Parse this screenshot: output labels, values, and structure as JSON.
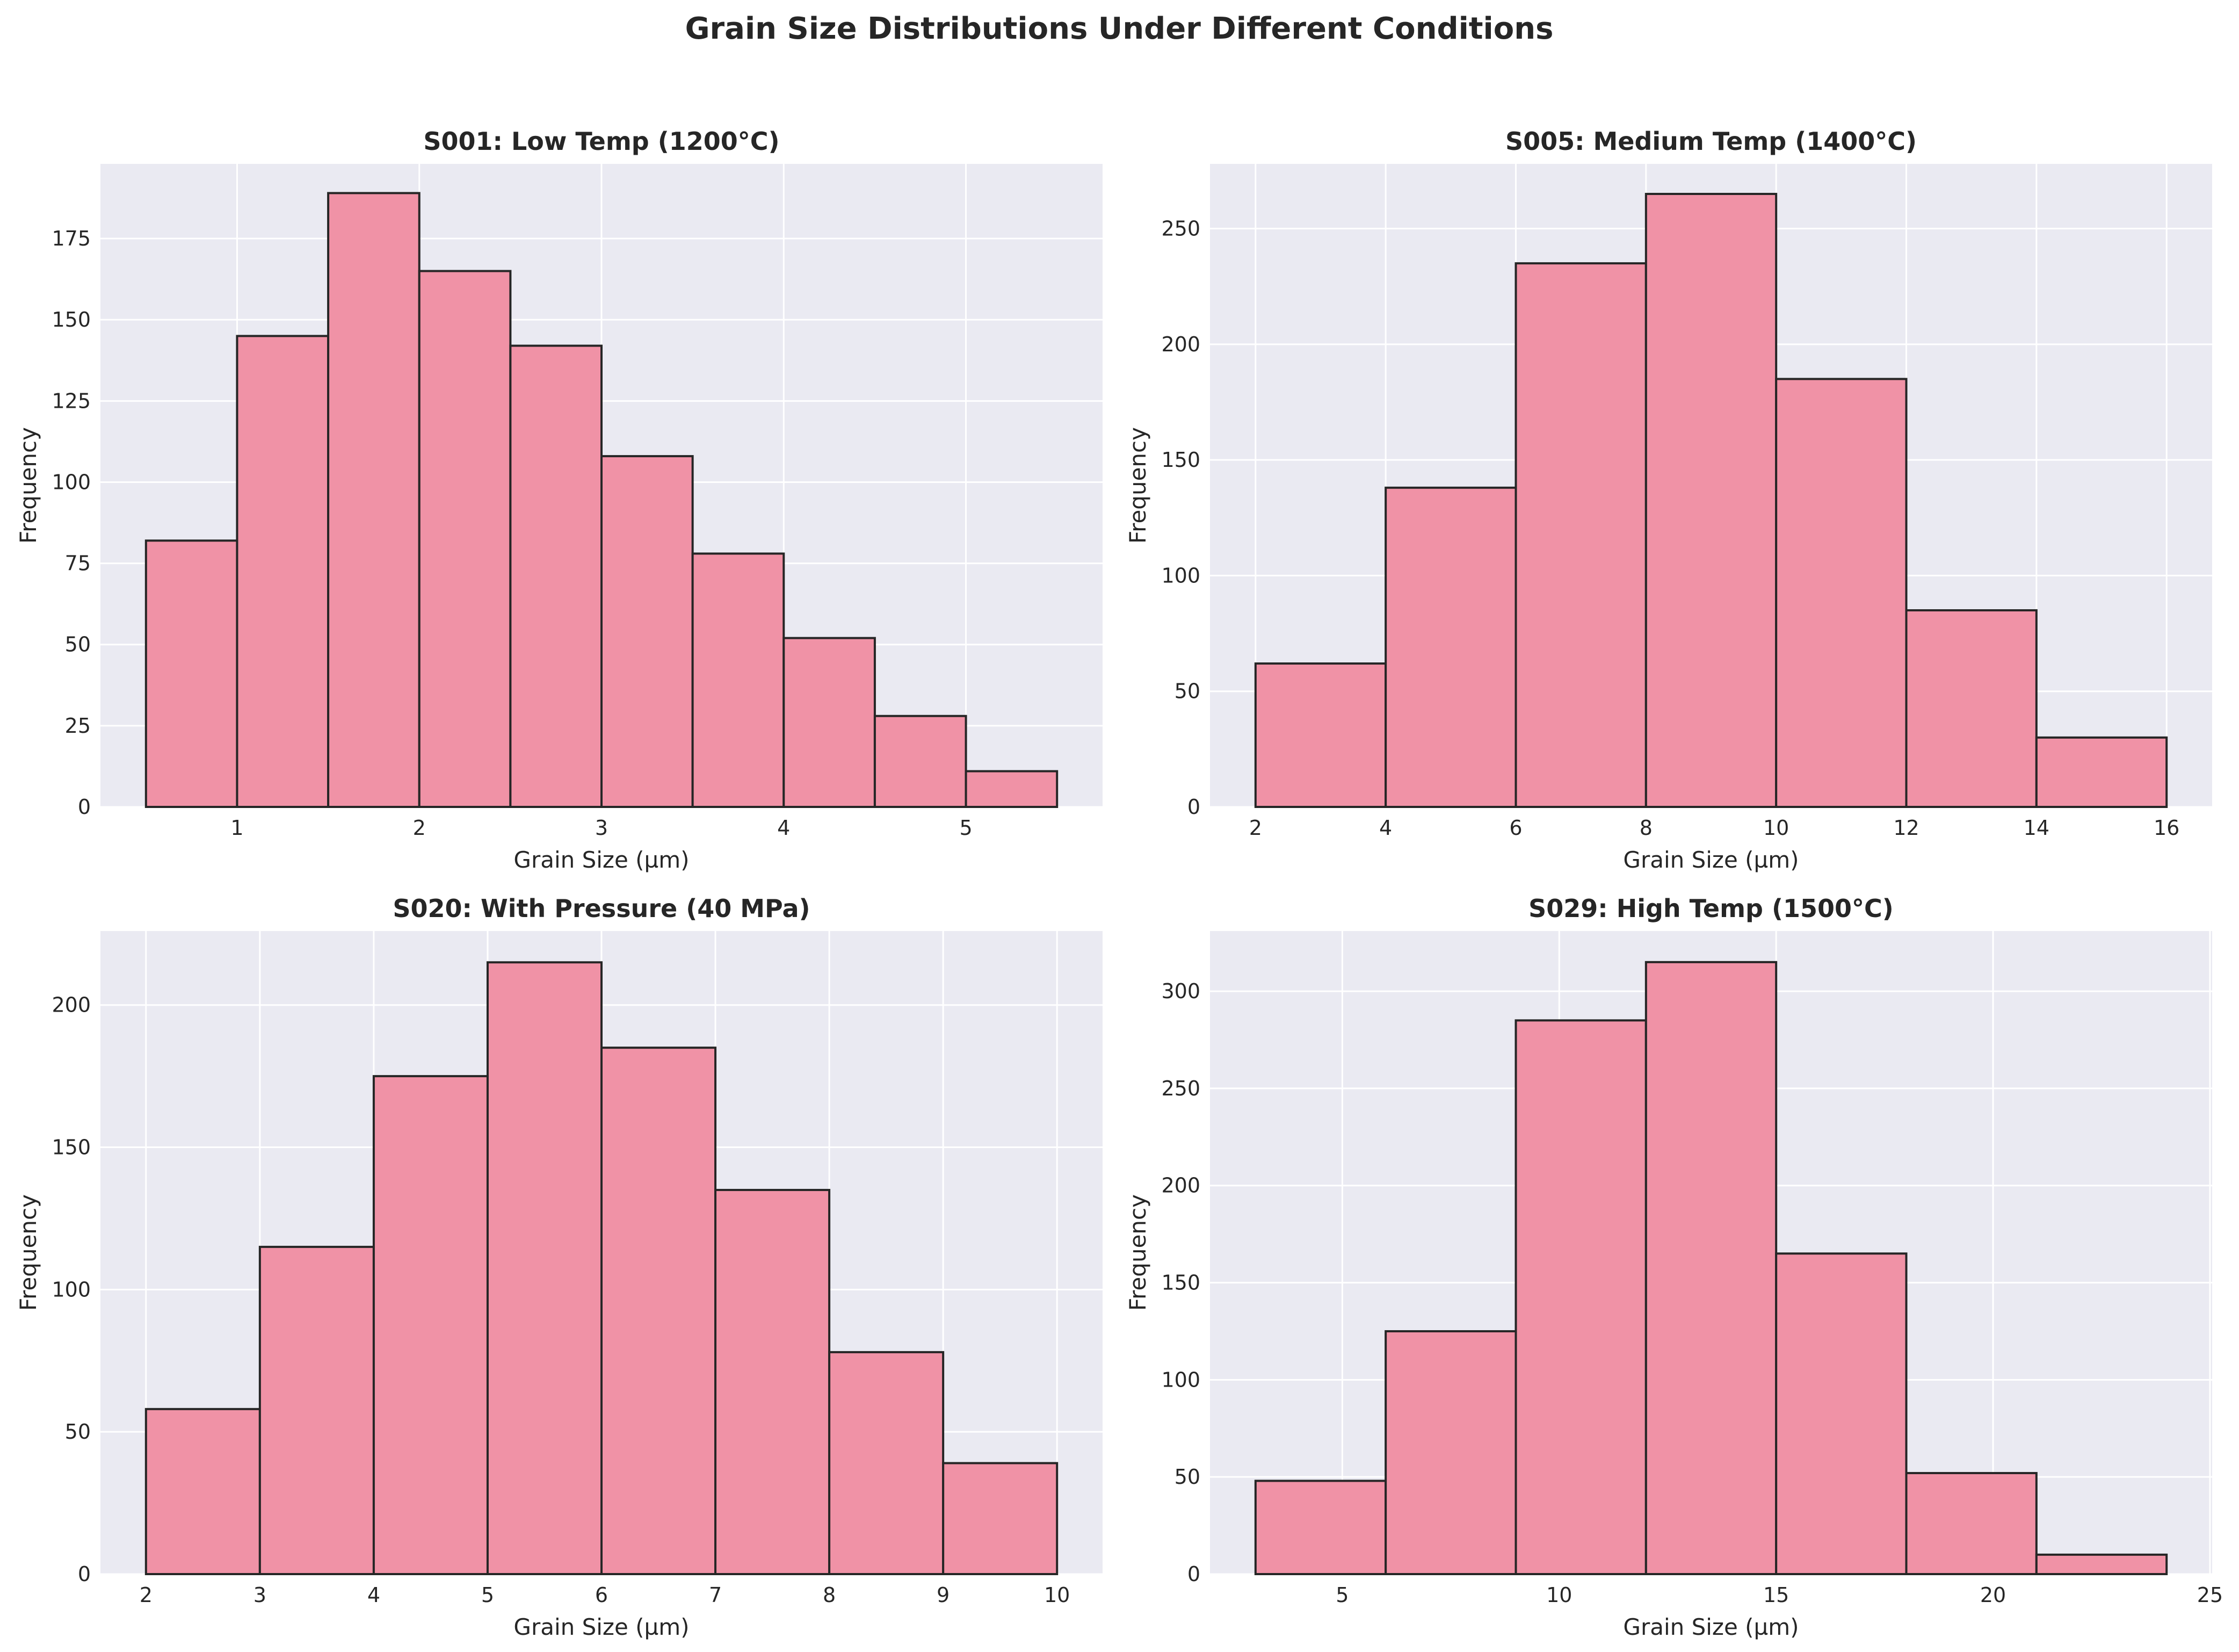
{
  "figure_title": "Grain Size Distributions Under Different Conditions",
  "colors": {
    "bar_fill": "#f092a6",
    "bar_edge": "#262626",
    "plot_background": "#eaeaf2",
    "grid": "#ffffff",
    "text": "#262626"
  },
  "chart_data": [
    {
      "type": "bar",
      "title": "S001: Low Temp (1200°C)",
      "xlabel": "Grain Size (µm)",
      "ylabel": "Frequency",
      "bin_edges": [
        0.5,
        1.0,
        1.5,
        2.0,
        2.5,
        3.0,
        3.5,
        4.0,
        4.5,
        5.0,
        5.5
      ],
      "values": [
        82,
        145,
        189,
        165,
        142,
        108,
        78,
        52,
        28,
        11
      ],
      "xlim": [
        0.25,
        5.75
      ],
      "ylim": [
        0,
        198
      ],
      "xticks": [
        1,
        2,
        3,
        4,
        5
      ],
      "yticks": [
        0,
        25,
        50,
        75,
        100,
        125,
        150,
        175
      ],
      "grid": true
    },
    {
      "type": "bar",
      "title": "S005: Medium Temp (1400°C)",
      "xlabel": "Grain Size (µm)",
      "ylabel": "Frequency",
      "bin_edges": [
        2,
        4,
        6,
        8,
        10,
        12,
        14,
        16
      ],
      "values": [
        62,
        138,
        235,
        265,
        185,
        85,
        30
      ],
      "xlim": [
        1.3,
        16.7
      ],
      "ylim": [
        0,
        278
      ],
      "xticks": [
        2,
        4,
        6,
        8,
        10,
        12,
        14,
        16
      ],
      "yticks": [
        0,
        50,
        100,
        150,
        200,
        250
      ],
      "grid": true
    },
    {
      "type": "bar",
      "title": "S020: With Pressure (40 MPa)",
      "xlabel": "Grain Size (µm)",
      "ylabel": "Frequency",
      "bin_edges": [
        2,
        3,
        4,
        5,
        6,
        7,
        8,
        9,
        10
      ],
      "values": [
        58,
        115,
        175,
        215,
        185,
        135,
        78,
        39
      ],
      "xlim": [
        1.6,
        10.4
      ],
      "ylim": [
        0,
        226
      ],
      "xticks": [
        2,
        3,
        4,
        5,
        6,
        7,
        8,
        9,
        10
      ],
      "yticks": [
        0,
        50,
        100,
        150,
        200
      ],
      "grid": true
    },
    {
      "type": "bar",
      "title": "S029: High Temp (1500°C)",
      "xlabel": "Grain Size (µm)",
      "ylabel": "Frequency",
      "bin_edges": [
        3,
        6,
        9,
        12,
        15,
        18,
        21,
        24
      ],
      "values": [
        48,
        125,
        285,
        315,
        165,
        52,
        10
      ],
      "xlim": [
        1.95,
        25.05
      ],
      "ylim": [
        0,
        331
      ],
      "xticks": [
        5,
        10,
        15,
        20,
        25
      ],
      "yticks": [
        0,
        50,
        100,
        150,
        200,
        250,
        300
      ],
      "grid": true
    }
  ]
}
